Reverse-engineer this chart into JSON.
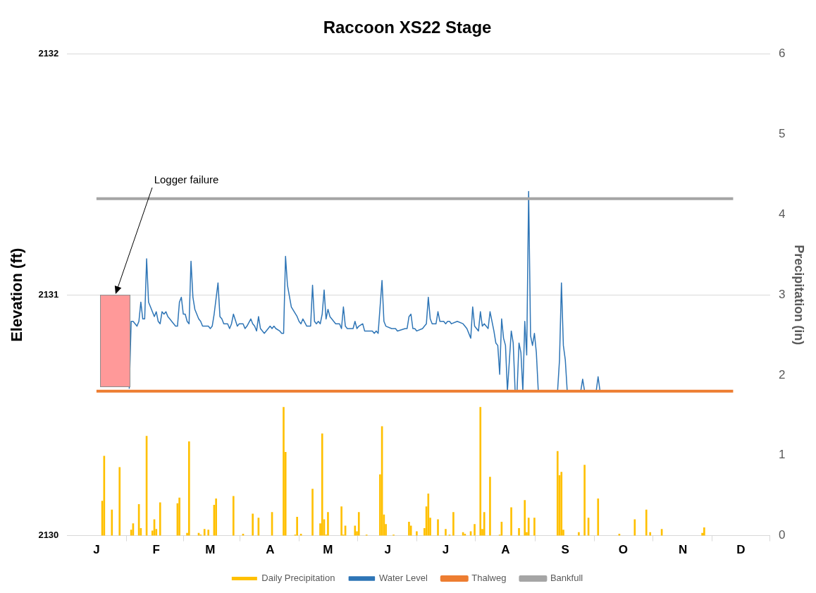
{
  "chart_data": {
    "type": "line",
    "title": "Raccoon XS22 Stage",
    "ylabel": "Elevation (ft)",
    "y2label": "Precipitation (in)",
    "categories": [
      "J",
      null,
      null,
      null,
      null,
      null,
      null,
      null,
      null,
      null,
      null,
      null,
      null,
      null,
      null,
      null,
      null,
      null,
      null,
      null,
      null,
      null,
      null,
      null,
      null,
      null,
      null,
      null,
      null,
      null,
      null,
      "F",
      null,
      null,
      null,
      null,
      null,
      null,
      null,
      null,
      null,
      null,
      null,
      null,
      null,
      null,
      null,
      null,
      null,
      null,
      null,
      null,
      null,
      null,
      null,
      null,
      null,
      null,
      null,
      "M",
      null,
      null,
      null,
      null,
      null,
      null,
      null,
      null,
      null,
      null,
      null,
      null,
      null,
      null,
      null,
      null,
      null,
      null,
      null,
      null,
      null,
      null,
      null,
      null,
      null,
      null,
      null,
      null,
      null,
      null,
      "A",
      null,
      null,
      null,
      null,
      null,
      null,
      null,
      null,
      null,
      null,
      null,
      null,
      null,
      null,
      null,
      null,
      null,
      null,
      null,
      null,
      null,
      null,
      null,
      null,
      null,
      null,
      null,
      null,
      null,
      "M",
      null,
      null,
      null,
      null,
      null,
      null,
      null,
      null,
      null,
      null,
      null,
      null,
      null,
      null,
      null,
      null,
      null,
      null,
      null,
      null,
      null,
      null,
      null,
      null,
      null,
      null,
      null,
      null,
      null,
      null,
      "J",
      null,
      null,
      null,
      null,
      null,
      null,
      null,
      null,
      null,
      null,
      null,
      null,
      null,
      null,
      null,
      null,
      null,
      null,
      null,
      null,
      null,
      null,
      null,
      null,
      null,
      null,
      null,
      null,
      null,
      "J",
      null,
      null,
      null,
      null,
      null,
      null,
      null,
      null,
      null,
      null,
      null,
      null,
      null,
      null,
      null,
      null,
      null,
      null,
      null,
      null,
      null,
      null,
      null,
      null,
      null,
      null,
      null,
      null,
      null,
      null,
      "A",
      null,
      null,
      null,
      null,
      null,
      null,
      null,
      null,
      null,
      null,
      null,
      null,
      null,
      null,
      null,
      null,
      null,
      null,
      null,
      null,
      null,
      null,
      null,
      null,
      null,
      null,
      null,
      null,
      null,
      null,
      "S",
      null,
      null,
      null,
      null,
      null,
      null,
      null,
      null,
      null,
      null,
      null,
      null,
      null,
      null,
      null,
      null,
      null,
      null,
      null,
      null,
      null,
      null,
      null,
      null,
      null,
      null,
      null,
      null,
      null,
      "O",
      null,
      null,
      null,
      null,
      null,
      null,
      null,
      null,
      null,
      null,
      null,
      null,
      null,
      null,
      null,
      null,
      null,
      null,
      null,
      null,
      null,
      null,
      null,
      null,
      null,
      null,
      null,
      null,
      null,
      null,
      "N",
      null,
      null,
      null,
      null,
      null,
      null,
      null,
      null,
      null,
      null,
      null,
      null,
      null,
      null,
      null,
      null,
      null,
      null,
      null,
      null,
      null,
      null,
      null,
      null,
      null,
      null,
      null,
      null,
      null,
      "D"
    ],
    "ylim": [
      2130,
      2132
    ],
    "yticks": [
      2130,
      2131,
      2132
    ],
    "y2lim": [
      0,
      6
    ],
    "y2ticks": [
      0,
      1,
      2,
      3,
      4,
      5,
      6
    ],
    "grid": "y",
    "legend": "bottom",
    "marker": "none",
    "annotations": [
      "Logger failure"
    ],
    "series": [
      {
        "name": "Daily Precipitation",
        "type": "bar",
        "axis": "y2",
        "color": "#ffc000",
        "values": [
          null,
          null,
          null,
          0.43,
          0.99,
          null,
          null,
          null,
          0.32,
          null,
          null,
          null,
          0.85,
          null,
          null,
          null,
          null,
          null,
          0.07,
          0.15,
          null,
          null,
          0.39,
          0.09,
          null,
          null,
          1.24,
          null,
          null,
          0.06,
          0.2,
          0.08,
          null,
          0.41,
          null,
          null,
          null,
          null,
          null,
          null,
          null,
          null,
          0.4,
          0.47,
          null,
          null,
          null,
          0.03,
          1.17,
          null,
          null,
          null,
          null,
          0.03,
          0.01,
          null,
          0.08,
          null,
          0.07,
          null,
          null,
          0.38,
          0.46,
          null,
          null,
          null,
          null,
          null,
          null,
          null,
          null,
          0.49,
          null,
          null,
          null,
          null,
          0.02,
          null,
          null,
          null,
          null,
          0.27,
          null,
          null,
          0.22,
          null,
          null,
          null,
          null,
          null,
          null,
          0.29,
          null,
          null,
          null,
          null,
          null,
          1.6,
          1.04,
          null,
          null,
          null,
          null,
          0.01,
          0.23,
          null,
          0.02,
          null,
          null,
          null,
          null,
          null,
          0.58,
          null,
          null,
          null,
          0.15,
          1.27,
          0.2,
          0.01,
          0.29,
          null,
          null,
          null,
          null,
          null,
          null,
          0.36,
          0.01,
          0.12,
          null,
          null,
          null,
          null,
          0.12,
          0.05,
          0.29,
          null,
          null,
          null,
          0.01,
          null,
          null,
          null,
          null,
          null,
          null,
          0.76,
          1.36,
          0.26,
          0.14,
          null,
          null,
          null,
          0.01,
          null,
          null,
          null,
          null,
          null,
          null,
          null,
          0.17,
          0.12,
          null,
          null,
          0.05,
          null,
          null,
          null,
          0.09,
          0.36,
          0.52,
          0.22,
          null,
          null,
          null,
          0.2,
          null,
          null,
          null,
          0.08,
          null,
          0.01,
          null,
          0.29,
          null,
          null,
          null,
          null,
          0.04,
          0.02,
          null,
          null,
          0.05,
          null,
          0.14,
          null,
          null,
          1.6,
          0.08,
          0.29,
          null,
          null,
          0.73,
          null,
          null,
          null,
          null,
          0.01,
          0.17,
          null,
          null,
          null,
          null,
          0.35,
          null,
          null,
          null,
          0.09,
          null,
          null,
          0.44,
          0.04,
          0.22,
          null,
          null,
          0.22,
          null,
          null,
          null,
          null,
          null,
          null,
          null,
          null,
          null,
          null,
          null,
          1.05,
          0.75,
          0.79,
          0.07,
          null,
          null,
          null,
          null,
          null,
          null,
          null,
          0.04,
          null,
          null,
          0.88,
          null,
          0.22,
          null,
          null,
          null,
          null,
          0.46,
          null,
          null,
          null,
          null,
          null,
          null,
          null,
          null,
          null,
          null,
          0.02,
          null,
          null,
          null,
          null,
          null,
          null,
          null,
          0.2,
          null,
          null,
          null,
          null,
          null,
          0.32,
          null,
          0.04,
          null,
          null,
          null,
          null,
          null,
          0.08,
          null,
          null,
          null,
          null,
          null,
          null,
          null,
          null,
          null,
          null,
          null,
          null,
          null,
          null,
          null,
          null,
          null,
          null,
          null,
          null,
          0.03,
          0.1,
          null,
          null,
          null,
          null,
          null,
          null,
          null,
          null,
          null,
          null,
          null,
          null,
          null,
          null,
          null,
          null,
          null,
          null,
          null
        ]
      },
      {
        "name": "Water Level",
        "color": "#2e75b6",
        "values": [
          null,
          null,
          null,
          null,
          null,
          null,
          null,
          null,
          null,
          null,
          null,
          null,
          null,
          null,
          null,
          null,
          null,
          2130.61,
          2130.89,
          2130.89,
          null,
          2130.87,
          2130.89,
          2130.97,
          2130.9,
          2130.9,
          2131.15,
          2130.97,
          2130.95,
          null,
          2130.91,
          2130.93,
          2130.89,
          2130.88,
          2130.93,
          2130.92,
          2130.93,
          2130.91,
          2130.9,
          2130.89,
          null,
          2130.87,
          2130.87,
          2130.97,
          2130.99,
          2130.92,
          2130.92,
          2130.89,
          2130.88,
          2131.14,
          2130.99,
          2130.94,
          null,
          2130.9,
          2130.89,
          2130.87,
          2130.87,
          null,
          2130.87,
          2130.86,
          2130.87,
          2130.92,
          null,
          2131.05,
          2130.91,
          2130.9,
          2130.88,
          null,
          2130.88,
          2130.86,
          2130.88,
          2130.92,
          null,
          2130.87,
          2130.88,
          null,
          2130.88,
          2130.86,
          2130.87,
          null,
          2130.9,
          2130.88,
          2130.87,
          2130.85,
          2130.91,
          2130.86,
          null,
          2130.84,
          null,
          2130.86,
          2130.87,
          2130.86,
          2130.87,
          2130.86,
          null,
          2130.85,
          2130.84,
          2130.84,
          2131.16,
          2131.04,
          null,
          2130.95,
          null,
          null,
          2130.91,
          2130.89,
          2130.88,
          2130.9,
          null,
          2130.87,
          2130.87,
          2130.87,
          2131.04,
          2130.89,
          2130.88,
          2130.89,
          2130.88,
          2130.92,
          2131.02,
          2130.9,
          2130.94,
          2130.91,
          null,
          null,
          2130.88,
          null,
          2130.88,
          2130.86,
          2130.95,
          2130.87,
          2130.86,
          null,
          2130.86,
          2130.86,
          2130.89,
          2130.86,
          2130.87,
          null,
          2130.88,
          2130.85,
          null,
          2130.85,
          null,
          2130.85,
          2130.84,
          2130.85,
          2130.84,
          null,
          2131.06,
          2130.89,
          2130.87,
          null,
          null,
          2130.86,
          null,
          2130.86,
          2130.85,
          null,
          null,
          null,
          2130.86,
          2130.86,
          2130.91,
          2130.92,
          2130.86,
          2130.86,
          2130.85,
          null,
          null,
          2130.86,
          2130.87,
          2130.88,
          2130.99,
          2130.9,
          2130.88,
          null,
          2130.88,
          2130.93,
          2130.89,
          null,
          2130.89,
          2130.88,
          2130.89,
          2130.89,
          2130.88,
          null,
          null,
          2130.89,
          null,
          null,
          2130.88,
          null,
          2130.86,
          null,
          2130.82,
          2130.95,
          2130.87,
          null,
          2130.85,
          2130.93,
          2130.87,
          2130.88,
          2130.87,
          2130.86,
          2130.93,
          null,
          2130.85,
          2130.8,
          2130.79,
          2130.67,
          2130.9,
          2130.82,
          2130.79,
          2130.6,
          null,
          2130.85,
          2130.8,
          2130.6,
          2130.6,
          2130.8,
          2130.76,
          2130.6,
          2130.89,
          2130.75,
          2131.43,
          2130.83,
          2130.79,
          2130.84,
          2130.76,
          2130.6,
          null,
          null,
          null,
          null,
          null,
          null,
          null,
          null,
          null,
          2130.6,
          2130.73,
          2131.05,
          2130.79,
          2130.73,
          2130.6,
          null,
          null,
          null,
          null,
          null,
          null,
          2130.6,
          2130.65,
          2130.6,
          null,
          null,
          null,
          null,
          null,
          2130.6,
          2130.66,
          2130.6,
          null,
          null,
          null,
          null,
          null,
          null,
          null,
          null,
          null,
          null,
          null,
          null,
          null,
          null,
          null,
          null,
          null,
          null,
          null,
          null,
          null,
          null,
          null,
          null,
          null,
          null,
          null,
          null,
          null,
          null,
          null,
          null,
          null,
          null,
          null,
          null,
          null,
          null,
          null,
          null,
          null,
          null,
          null,
          null,
          null,
          null,
          null,
          null,
          null,
          null,
          null,
          null,
          null,
          null,
          null,
          null,
          null,
          null,
          null,
          null,
          null,
          null,
          null,
          null,
          null,
          null,
          null,
          null,
          null,
          null,
          null,
          null,
          null
        ]
      },
      {
        "name": "Thalweg",
        "color": "#ed7d31",
        "values": [
          2130.6,
          null,
          null,
          null,
          null,
          null,
          null,
          null,
          null,
          null,
          null,
          null,
          null,
          null,
          null,
          null,
          null,
          null,
          null,
          null,
          null,
          null,
          null,
          null,
          null,
          null,
          null,
          null,
          null,
          null,
          null,
          null,
          null,
          null,
          null,
          null,
          null,
          null,
          null,
          null,
          null,
          null,
          null,
          null,
          null,
          null,
          null,
          null,
          null,
          null,
          null,
          null,
          null,
          null,
          null,
          null,
          null,
          null,
          null,
          null,
          null,
          null,
          null,
          null,
          null,
          null,
          null,
          null,
          null,
          null,
          null,
          null,
          null,
          null,
          null,
          null,
          null,
          null,
          null,
          null,
          null,
          null,
          null,
          null,
          null,
          null,
          null,
          null,
          null,
          null,
          null,
          null,
          null,
          null,
          null,
          null,
          null,
          null,
          null,
          null,
          null,
          null,
          null,
          null,
          null,
          null,
          null,
          null,
          null,
          null,
          null,
          null,
          null,
          null,
          null,
          null,
          null,
          null,
          null,
          null,
          null,
          null,
          null,
          null,
          null,
          null,
          null,
          null,
          null,
          null,
          null,
          null,
          null,
          null,
          null,
          null,
          null,
          null,
          null,
          null,
          null,
          null,
          null,
          null,
          null,
          null,
          null,
          null,
          null,
          null,
          null,
          null,
          null,
          null,
          null,
          null,
          null,
          null,
          null,
          null,
          null,
          null,
          null,
          null,
          null,
          null,
          null,
          null,
          null,
          null,
          null,
          null,
          null,
          null,
          null,
          null,
          null,
          null,
          null,
          null,
          null,
          null,
          null,
          null,
          null,
          null,
          null,
          null,
          null,
          null,
          null,
          null,
          null,
          null,
          null,
          null,
          null,
          null,
          null,
          null,
          null,
          null,
          null,
          null,
          null,
          null,
          null,
          null,
          null,
          null,
          null,
          null,
          null,
          null,
          null,
          null,
          null,
          null,
          null,
          null,
          null,
          null,
          null,
          null,
          null,
          null,
          null,
          null,
          null,
          null,
          null,
          null,
          null,
          null,
          null,
          null,
          null,
          null,
          null,
          null,
          null,
          null,
          null,
          null,
          null,
          null,
          null,
          null,
          null,
          null,
          null,
          null,
          null,
          null,
          null,
          null,
          null,
          null,
          null,
          null,
          null,
          null,
          null,
          null,
          null,
          null,
          null,
          null,
          null,
          null,
          null,
          null,
          null,
          null,
          null,
          null,
          null,
          null,
          null,
          null,
          null,
          null,
          null,
          null,
          null,
          null,
          null,
          null,
          null,
          null,
          null,
          null,
          null,
          null,
          null,
          null,
          null,
          null,
          null,
          null,
          null,
          null,
          null,
          null,
          null,
          null,
          null,
          null,
          null,
          null,
          null,
          null,
          null,
          null,
          null,
          null,
          null,
          null,
          null,
          null,
          null,
          null,
          null,
          null,
          null,
          null,
          null,
          null,
          null,
          null,
          2130.6,
          null,
          null,
          null,
          null
        ]
      },
      {
        "name": "Bankfull",
        "color": "#a5a5a5",
        "values": [
          2131.4,
          null,
          null,
          null,
          null,
          null,
          null,
          null,
          null,
          null,
          null,
          null,
          null,
          null,
          null,
          null,
          null,
          null,
          null,
          null,
          null,
          null,
          null,
          null,
          null,
          null,
          null,
          null,
          null,
          null,
          null,
          null,
          null,
          null,
          null,
          null,
          null,
          null,
          null,
          null,
          null,
          null,
          null,
          null,
          null,
          null,
          null,
          null,
          null,
          null,
          null,
          null,
          null,
          null,
          null,
          null,
          null,
          null,
          null,
          null,
          null,
          null,
          null,
          null,
          null,
          null,
          null,
          null,
          null,
          null,
          null,
          null,
          null,
          null,
          null,
          null,
          null,
          null,
          null,
          null,
          null,
          null,
          null,
          null,
          null,
          null,
          null,
          null,
          null,
          null,
          null,
          null,
          null,
          null,
          null,
          null,
          null,
          null,
          null,
          null,
          null,
          null,
          null,
          null,
          null,
          null,
          null,
          null,
          null,
          null,
          null,
          null,
          null,
          null,
          null,
          null,
          null,
          null,
          null,
          null,
          null,
          null,
          null,
          null,
          null,
          null,
          null,
          null,
          null,
          null,
          null,
          null,
          null,
          null,
          null,
          null,
          null,
          null,
          null,
          null,
          null,
          null,
          null,
          null,
          null,
          null,
          null,
          null,
          null,
          null,
          null,
          null,
          null,
          null,
          null,
          null,
          null,
          null,
          null,
          null,
          null,
          null,
          null,
          null,
          null,
          null,
          null,
          null,
          null,
          null,
          null,
          null,
          null,
          null,
          null,
          null,
          null,
          null,
          null,
          null,
          null,
          null,
          null,
          null,
          null,
          null,
          null,
          null,
          null,
          null,
          null,
          null,
          null,
          null,
          null,
          null,
          null,
          null,
          null,
          null,
          null,
          null,
          null,
          null,
          null,
          null,
          null,
          null,
          null,
          null,
          null,
          null,
          null,
          null,
          null,
          null,
          null,
          null,
          null,
          null,
          null,
          null,
          null,
          null,
          null,
          null,
          null,
          null,
          null,
          null,
          null,
          null,
          null,
          null,
          null,
          null,
          null,
          null,
          null,
          null,
          null,
          null,
          null,
          null,
          null,
          null,
          null,
          null,
          null,
          null,
          null,
          null,
          null,
          null,
          null,
          null,
          null,
          null,
          null,
          null,
          null,
          null,
          null,
          null,
          null,
          null,
          null,
          null,
          null,
          null,
          null,
          null,
          null,
          null,
          null,
          null,
          null,
          null,
          null,
          null,
          null,
          null,
          null,
          null,
          null,
          null,
          null,
          null,
          null,
          null,
          null,
          null,
          null,
          null,
          null,
          null,
          null,
          null,
          null,
          null,
          null,
          null,
          null,
          null,
          null,
          null,
          null,
          null,
          null,
          null,
          null,
          null,
          null,
          null,
          null,
          null,
          null,
          null,
          null,
          null,
          null,
          null,
          null,
          null,
          null,
          null,
          null,
          null,
          null,
          null,
          2131.4,
          null,
          null,
          null,
          null
        ]
      }
    ]
  }
}
